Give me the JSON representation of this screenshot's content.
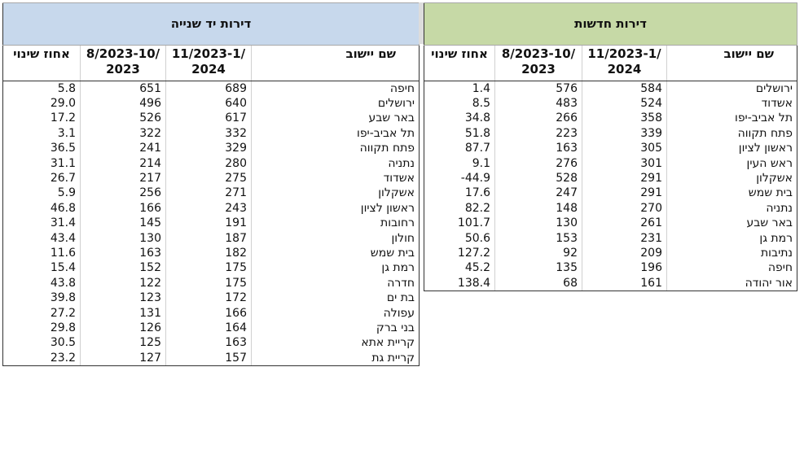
{
  "used": {
    "title": "דירות יד שנייה",
    "headers": {
      "change": "אחוז שינוי",
      "period1_a": "8/2023-10/",
      "period1_b": "2023",
      "period2_a": "11/2023-1/",
      "period2_b": "2024",
      "name": "שם יישוב"
    },
    "rows": [
      {
        "change": "5.8",
        "p1": "651",
        "p2": "689",
        "name": "חיפה"
      },
      {
        "change": "29.0",
        "p1": "496",
        "p2": "640",
        "name": "ירושלים"
      },
      {
        "change": "17.2",
        "p1": "526",
        "p2": "617",
        "name": "באר שבע"
      },
      {
        "change": "3.1",
        "p1": "322",
        "p2": "332",
        "name": "תל אביב-יפו"
      },
      {
        "change": "36.5",
        "p1": "241",
        "p2": "329",
        "name": "פתח תקווה"
      },
      {
        "change": "31.1",
        "p1": "214",
        "p2": "280",
        "name": "נתניה"
      },
      {
        "change": "26.7",
        "p1": "217",
        "p2": "275",
        "name": "אשדוד"
      },
      {
        "change": "5.9",
        "p1": "256",
        "p2": "271",
        "name": "אשקלון"
      },
      {
        "change": "46.8",
        "p1": "166",
        "p2": "243",
        "name": "ראשון לציון"
      },
      {
        "change": "31.4",
        "p1": "145",
        "p2": "191",
        "name": "רחובות"
      },
      {
        "change": "43.4",
        "p1": "130",
        "p2": "187",
        "name": "חולון"
      },
      {
        "change": "11.6",
        "p1": "163",
        "p2": "182",
        "name": "בית שמש"
      },
      {
        "change": "15.4",
        "p1": "152",
        "p2": "175",
        "name": "רמת גן"
      },
      {
        "change": "43.8",
        "p1": "122",
        "p2": "175",
        "name": "חדרה"
      },
      {
        "change": "39.8",
        "p1": "123",
        "p2": "172",
        "name": "בת ים"
      },
      {
        "change": "27.2",
        "p1": "131",
        "p2": "166",
        "name": "עפולה"
      },
      {
        "change": "29.8",
        "p1": "126",
        "p2": "164",
        "name": "בני ברק"
      },
      {
        "change": "30.5",
        "p1": "125",
        "p2": "163",
        "name": "קריית אתא"
      },
      {
        "change": "23.2",
        "p1": "127",
        "p2": "157",
        "name": "קריית גת"
      }
    ]
  },
  "new": {
    "title": "דירות חדשות",
    "headers": {
      "change": "אחוז שינוי",
      "period1_a": "8/2023-10/",
      "period1_b": "2023",
      "period2_a": "11/2023-1/",
      "period2_b": "2024",
      "name": "שם יישוב"
    },
    "rows": [
      {
        "change": "1.4",
        "p1": "576",
        "p2": "584",
        "name": "ירושלים"
      },
      {
        "change": "8.5",
        "p1": "483",
        "p2": "524",
        "name": "אשדוד"
      },
      {
        "change": "34.8",
        "p1": "266",
        "p2": "358",
        "name": "תל אביב-יפו"
      },
      {
        "change": "51.8",
        "p1": "223",
        "p2": "339",
        "name": "פתח תקווה"
      },
      {
        "change": "87.7",
        "p1": "163",
        "p2": "305",
        "name": "ראשון לציון"
      },
      {
        "change": "9.1",
        "p1": "276",
        "p2": "301",
        "name": "ראש העין"
      },
      {
        "change": "-44.9",
        "p1": "528",
        "p2": "291",
        "name": "אשקלון"
      },
      {
        "change": "17.6",
        "p1": "247",
        "p2": "291",
        "name": "בית שמש"
      },
      {
        "change": "82.2",
        "p1": "148",
        "p2": "270",
        "name": "נתניה"
      },
      {
        "change": "101.7",
        "p1": "130",
        "p2": "261",
        "name": "באר שבע"
      },
      {
        "change": "50.6",
        "p1": "153",
        "p2": "231",
        "name": "רמת גן"
      },
      {
        "change": "127.2",
        "p1": "92",
        "p2": "209",
        "name": "נתיבות"
      },
      {
        "change": "45.2",
        "p1": "135",
        "p2": "196",
        "name": "חיפה"
      },
      {
        "change": "138.4",
        "p1": "68",
        "p2": "161",
        "name": "אור יהודה"
      }
    ]
  }
}
